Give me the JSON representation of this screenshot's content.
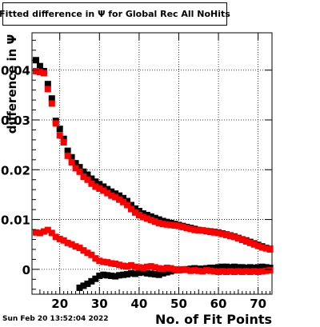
{
  "chart_data": {
    "type": "scatter",
    "title": "Fitted difference in  Ψ  for Global Rec All NoHits",
    "xlabel": "No. of Fit Points",
    "ylabel": "difference in  Ψ",
    "xlim": [
      13,
      73.5
    ],
    "ylim": [
      -0.005,
      0.0475
    ],
    "xticks": [
      20,
      30,
      40,
      50,
      60,
      70
    ],
    "yticks": [
      0,
      0.01,
      0.02,
      0.03,
      0.04
    ],
    "ytick_labels": [
      "0",
      "0.01",
      "0.02",
      "0.03",
      "0.04"
    ],
    "grid": true,
    "series": [
      {
        "color": "#000000",
        "marker": "square",
        "points": [
          [
            14,
            0.042
          ],
          [
            15,
            0.0408
          ],
          [
            16,
            0.0398
          ],
          [
            17,
            0.0372
          ],
          [
            18,
            0.0343
          ],
          [
            19,
            0.0298
          ],
          [
            20,
            0.0282
          ],
          [
            21,
            0.0262
          ],
          [
            22,
            0.0238
          ],
          [
            23,
            0.0225
          ],
          [
            24,
            0.0213
          ],
          [
            25,
            0.0205
          ],
          [
            26,
            0.0196
          ],
          [
            27,
            0.019
          ],
          [
            28,
            0.0182
          ],
          [
            29,
            0.0176
          ],
          [
            30,
            0.0171
          ],
          [
            31,
            0.0166
          ],
          [
            32,
            0.0161
          ],
          [
            33,
            0.0156
          ],
          [
            34,
            0.0152
          ],
          [
            35,
            0.0148
          ],
          [
            36,
            0.0143
          ],
          [
            37,
            0.0137
          ],
          [
            38,
            0.0129
          ],
          [
            39,
            0.0122
          ],
          [
            40,
            0.0117
          ],
          [
            41,
            0.0112
          ],
          [
            42,
            0.0109
          ],
          [
            43,
            0.0106
          ],
          [
            44,
            0.0103
          ],
          [
            45,
            0.01
          ],
          [
            46,
            0.0097
          ],
          [
            47,
            0.0095
          ],
          [
            48,
            0.0093
          ],
          [
            49,
            0.0091
          ],
          [
            50,
            0.0089
          ],
          [
            51,
            0.0087
          ],
          [
            52,
            0.0085
          ],
          [
            53,
            0.0083
          ],
          [
            54,
            0.0081
          ],
          [
            55,
            0.0079
          ],
          [
            56,
            0.0078
          ],
          [
            57,
            0.0077
          ],
          [
            58,
            0.0076
          ],
          [
            59,
            0.0075
          ],
          [
            60,
            0.0074
          ],
          [
            61,
            0.0072
          ],
          [
            62,
            0.007
          ],
          [
            63,
            0.0068
          ],
          [
            64,
            0.0066
          ],
          [
            65,
            0.0063
          ],
          [
            66,
            0.006
          ],
          [
            67,
            0.0058
          ],
          [
            68,
            0.0055
          ],
          [
            69,
            0.0052
          ],
          [
            70,
            0.0049
          ],
          [
            71,
            0.0046
          ],
          [
            72,
            0.0043
          ],
          [
            73,
            0.0041
          ],
          [
            25,
            -0.0037
          ],
          [
            26,
            -0.0033
          ],
          [
            27,
            -0.0029
          ],
          [
            28,
            -0.0024
          ],
          [
            29,
            -0.0019
          ],
          [
            30,
            -0.0013
          ],
          [
            31,
            -0.0011
          ],
          [
            32,
            -0.0012
          ],
          [
            33,
            -0.0013
          ],
          [
            34,
            -0.0014
          ],
          [
            35,
            -0.0012
          ],
          [
            36,
            -0.0011
          ],
          [
            37,
            -0.001
          ],
          [
            38,
            -0.0008
          ],
          [
            39,
            -0.0009
          ],
          [
            40,
            -0.0007
          ],
          [
            41,
            -0.0006
          ],
          [
            42,
            -0.0008
          ],
          [
            43,
            -0.0009
          ],
          [
            44,
            -0.001
          ],
          [
            45,
            -0.0011
          ],
          [
            46,
            -0.0008
          ],
          [
            47,
            -0.0006
          ],
          [
            48,
            -0.0004
          ],
          [
            49,
            -0.0002
          ],
          [
            50,
            -0.0001
          ],
          [
            51,
            -0.0001
          ],
          [
            52,
            0
          ],
          [
            53,
            0.0001
          ],
          [
            54,
            0.0002
          ],
          [
            55,
            0.0001
          ],
          [
            56,
            0.0001
          ],
          [
            57,
            0.0002
          ],
          [
            58,
            0.0003
          ],
          [
            59,
            0.0003
          ],
          [
            60,
            0.0004
          ],
          [
            61,
            0.0005
          ],
          [
            62,
            0.0005
          ],
          [
            63,
            0.0004
          ],
          [
            64,
            0.0005
          ],
          [
            65,
            0.0004
          ],
          [
            66,
            0.0004
          ],
          [
            67,
            0.0003
          ],
          [
            68,
            0.0004
          ],
          [
            69,
            0.0003
          ],
          [
            70,
            0.0004
          ],
          [
            71,
            0.0005
          ],
          [
            72,
            0.0004
          ],
          [
            73,
            0.0003
          ]
        ]
      },
      {
        "color": "#ff0000",
        "marker": "square",
        "points": [
          [
            14,
            0.0398
          ],
          [
            15,
            0.0396
          ],
          [
            16,
            0.0394
          ],
          [
            17,
            0.0362
          ],
          [
            18,
            0.0333
          ],
          [
            19,
            0.0293
          ],
          [
            20,
            0.0269
          ],
          [
            21,
            0.0255
          ],
          [
            22,
            0.0228
          ],
          [
            23,
            0.0215
          ],
          [
            24,
            0.0203
          ],
          [
            25,
            0.0196
          ],
          [
            26,
            0.0186
          ],
          [
            27,
            0.018
          ],
          [
            28,
            0.0172
          ],
          [
            29,
            0.0166
          ],
          [
            30,
            0.0162
          ],
          [
            31,
            0.0158
          ],
          [
            32,
            0.0153
          ],
          [
            33,
            0.0148
          ],
          [
            34,
            0.0145
          ],
          [
            35,
            0.014
          ],
          [
            36,
            0.0135
          ],
          [
            37,
            0.0129
          ],
          [
            38,
            0.0121
          ],
          [
            39,
            0.0114
          ],
          [
            40,
            0.0109
          ],
          [
            41,
            0.0105
          ],
          [
            42,
            0.0102
          ],
          [
            43,
            0.0099
          ],
          [
            44,
            0.0096
          ],
          [
            45,
            0.0093
          ],
          [
            46,
            0.0091
          ],
          [
            47,
            0.009
          ],
          [
            48,
            0.0089
          ],
          [
            49,
            0.0088
          ],
          [
            50,
            0.0087
          ],
          [
            51,
            0.0085
          ],
          [
            52,
            0.0083
          ],
          [
            53,
            0.0081
          ],
          [
            54,
            0.0079
          ],
          [
            55,
            0.0078
          ],
          [
            56,
            0.0078
          ],
          [
            57,
            0.0077
          ],
          [
            58,
            0.0075
          ],
          [
            59,
            0.0074
          ],
          [
            60,
            0.0073
          ],
          [
            61,
            0.0071
          ],
          [
            62,
            0.0069
          ],
          [
            63,
            0.0067
          ],
          [
            64,
            0.0065
          ],
          [
            65,
            0.0062
          ],
          [
            66,
            0.0059
          ],
          [
            67,
            0.0056
          ],
          [
            68,
            0.0053
          ],
          [
            69,
            0.005
          ],
          [
            70,
            0.0047
          ],
          [
            71,
            0.0044
          ],
          [
            72,
            0.0042
          ],
          [
            73,
            0.004
          ],
          [
            14,
            0.0074
          ],
          [
            15,
            0.0073
          ],
          [
            16,
            0.0076
          ],
          [
            17,
            0.0079
          ],
          [
            18,
            0.0073
          ],
          [
            19,
            0.0065
          ],
          [
            20,
            0.0061
          ],
          [
            21,
            0.0058
          ],
          [
            22,
            0.0053
          ],
          [
            23,
            0.005
          ],
          [
            24,
            0.0046
          ],
          [
            25,
            0.0043
          ],
          [
            26,
            0.0038
          ],
          [
            27,
            0.0033
          ],
          [
            28,
            0.0029
          ],
          [
            29,
            0.0022
          ],
          [
            30,
            0.0017
          ],
          [
            31,
            0.0015
          ],
          [
            32,
            0.0014
          ],
          [
            33,
            0.0012
          ],
          [
            34,
            0.0011
          ],
          [
            35,
            0.0009
          ],
          [
            36,
            0.0007
          ],
          [
            37,
            0.0006
          ],
          [
            38,
            0.0008
          ],
          [
            39,
            0.0005
          ],
          [
            40,
            0.0004
          ],
          [
            41,
            0.0003
          ],
          [
            42,
            0.0005
          ],
          [
            43,
            0.0006
          ],
          [
            44,
            0.0004
          ],
          [
            45,
            0.0002
          ],
          [
            46,
            0.0001
          ],
          [
            47,
            0.0003
          ],
          [
            48,
            0.0002
          ],
          [
            49,
            0
          ],
          [
            50,
            -0.0002
          ],
          [
            51,
            0
          ],
          [
            52,
            -0.0001
          ],
          [
            53,
            -0.0003
          ],
          [
            54,
            -0.0002
          ],
          [
            55,
            -0.0003
          ],
          [
            56,
            -0.0004
          ],
          [
            57,
            -0.0002
          ],
          [
            58,
            -0.0003
          ],
          [
            59,
            -0.0004
          ],
          [
            60,
            -0.0005
          ],
          [
            61,
            -0.0004
          ],
          [
            62,
            -0.0005
          ],
          [
            63,
            -0.0004
          ],
          [
            64,
            -0.0005
          ],
          [
            65,
            -0.0004
          ],
          [
            66,
            -0.0005
          ],
          [
            67,
            -0.0004
          ],
          [
            68,
            -0.0005
          ],
          [
            69,
            -0.0004
          ],
          [
            70,
            -0.0005
          ],
          [
            71,
            -0.0004
          ],
          [
            72,
            -0.0003
          ],
          [
            73,
            -0.0002
          ]
        ]
      }
    ]
  },
  "footer": {
    "timestamp": "Sun Feb 20 13:52:04 2022"
  }
}
